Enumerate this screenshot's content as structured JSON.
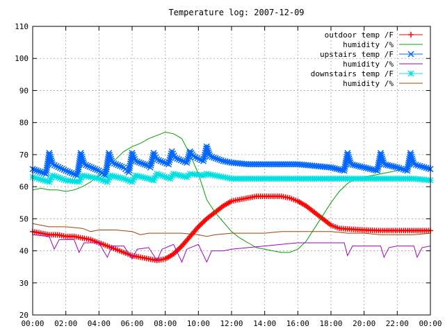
{
  "chart_data": {
    "type": "line",
    "title": "Temperature log: 2007-12-09",
    "xlabel": "",
    "ylabel": "",
    "ylim": [
      20,
      110
    ],
    "xlim": [
      0,
      24
    ],
    "yticks": [
      "20",
      "30",
      "40",
      "50",
      "60",
      "70",
      "80",
      "90",
      "100",
      "110"
    ],
    "xticks": [
      "00:00",
      "02:00",
      "04:00",
      "06:00",
      "08:00",
      "10:00",
      "12:00",
      "14:00",
      "16:00",
      "18:00",
      "20:00",
      "22:00",
      "00:00"
    ],
    "grid": true,
    "legend_position": "top-right",
    "series": [
      {
        "name": "outdoor temp /F",
        "color": "#ff0000",
        "marker": "plus",
        "x": [
          0,
          0.5,
          1,
          1.5,
          2,
          2.5,
          3,
          3.5,
          4,
          4.5,
          5,
          5.5,
          6,
          6.5,
          7,
          7.5,
          8,
          8.5,
          9,
          9.5,
          10,
          10.5,
          11,
          11.5,
          12,
          12.5,
          13,
          13.5,
          14,
          14.5,
          15,
          15.5,
          16,
          16.5,
          17,
          17.5,
          18,
          18.5,
          19,
          20,
          21,
          22,
          23,
          24
        ],
        "y": [
          46,
          45.5,
          45,
          45,
          44.5,
          44.5,
          44,
          43.5,
          42.5,
          41.5,
          40.5,
          39.5,
          38.5,
          38,
          37.5,
          37,
          37.5,
          39,
          41.5,
          44.5,
          47.5,
          50,
          52,
          54,
          55.5,
          56,
          56.5,
          57,
          57,
          57,
          57,
          56.5,
          55.5,
          54,
          52,
          50,
          48,
          47,
          46.8,
          46.5,
          46.3,
          46.3,
          46.3,
          46.3
        ]
      },
      {
        "name": "humidity /%",
        "color": "#00a000",
        "marker": "none",
        "x": [
          0,
          0.5,
          1,
          1.5,
          2,
          2.5,
          3,
          3.5,
          4,
          4.5,
          5,
          5.5,
          6,
          6.5,
          7,
          7.5,
          8,
          8.5,
          9,
          9.5,
          10,
          10.5,
          11,
          11.5,
          12,
          12.5,
          13,
          13.5,
          14,
          14.5,
          15,
          15.5,
          16,
          16.5,
          17,
          17.5,
          18,
          18.5,
          19,
          19.5,
          20,
          20.5,
          21,
          21.5,
          22,
          22.5,
          23,
          23.5,
          24
        ],
        "y": [
          59,
          59.5,
          59,
          59,
          58.5,
          59,
          60,
          61.5,
          63.5,
          66,
          68.5,
          71,
          72.5,
          73.5,
          75,
          76,
          77,
          76.5,
          75,
          70,
          64,
          56,
          52,
          49,
          46,
          44,
          42.5,
          41,
          40.5,
          40,
          39.5,
          39.5,
          40.5,
          43,
          47,
          51,
          55,
          58.5,
          61,
          62.5,
          63,
          63.5,
          64,
          64.5,
          65,
          66,
          67,
          66.5,
          66
        ]
      },
      {
        "name": "upstairs temp /F",
        "color": "#0066ff",
        "marker": "x",
        "x": [
          0,
          0.8,
          1.0,
          1.2,
          2,
          2.7,
          2.9,
          3.1,
          4,
          4.4,
          4.6,
          4.8,
          5.5,
          5.8,
          6.0,
          6.2,
          7,
          7.1,
          7.3,
          7.5,
          8.2,
          8.4,
          8.6,
          9.3,
          9.5,
          9.7,
          10.3,
          10.5,
          10.7,
          11.5,
          12,
          13,
          14,
          15,
          16,
          17,
          18,
          18.8,
          19.0,
          19.2,
          20,
          20.8,
          21.0,
          21.2,
          22,
          22.6,
          22.8,
          23.0,
          24
        ],
        "y": [
          65.5,
          64,
          70.5,
          67,
          65,
          63.5,
          70.5,
          67,
          65,
          63.5,
          70.5,
          67.5,
          66,
          64.5,
          70.5,
          68,
          66.5,
          66,
          70.5,
          68.5,
          67,
          71,
          69,
          67.5,
          71,
          69.5,
          68,
          72.5,
          69.5,
          68,
          67.5,
          67,
          67,
          67,
          67,
          66.5,
          66,
          65,
          70.5,
          67,
          66,
          65,
          70.5,
          67,
          66,
          65,
          70.5,
          67,
          65.5
        ]
      },
      {
        "name": "humidity /%",
        "color": "#a000c0",
        "marker": "none",
        "x": [
          0,
          1,
          1.3,
          1.6,
          2.5,
          2.8,
          3.1,
          4,
          4.5,
          4.8,
          5.5,
          6,
          6.3,
          7,
          7.5,
          7.8,
          8.5,
          9,
          9.3,
          10,
          10.5,
          10.8,
          11.5,
          12,
          13,
          14,
          15,
          16,
          17,
          18,
          18.8,
          19.0,
          19.3,
          20,
          21,
          21.2,
          21.5,
          22,
          23,
          23.2,
          23.5,
          24
        ],
        "y": [
          45,
          44.5,
          40.5,
          43.5,
          43.5,
          39.5,
          42.5,
          42.5,
          38,
          41.5,
          41.5,
          37.5,
          40.5,
          41,
          37,
          40.5,
          42,
          36.5,
          40.5,
          42,
          36.5,
          40,
          40,
          40.5,
          41,
          41.5,
          42,
          42.5,
          42.5,
          42.5,
          42.5,
          38.5,
          41.5,
          41.5,
          41.5,
          38,
          41,
          41.5,
          41.5,
          38,
          41,
          41.5
        ]
      },
      {
        "name": "downstairs temp /F",
        "color": "#00e0e0",
        "marker": "star",
        "x": [
          0,
          1,
          1.2,
          2,
          2.8,
          3.0,
          4,
          4.5,
          4.7,
          5.5,
          6.0,
          6.2,
          7,
          7.3,
          7.5,
          8.3,
          8.5,
          9.3,
          9.5,
          10.3,
          10.5,
          11.5,
          12,
          13,
          14,
          15,
          16,
          17,
          18,
          19,
          20,
          21,
          22,
          23,
          24
        ],
        "y": [
          63,
          61.5,
          63.5,
          62,
          61.5,
          63.5,
          62.5,
          61.5,
          63.5,
          62.5,
          61.5,
          63.5,
          62.5,
          62,
          64,
          62.5,
          64,
          63,
          64,
          63.5,
          64,
          63,
          62.5,
          62.5,
          62.5,
          62.5,
          62.5,
          62.5,
          62.5,
          62.5,
          62.5,
          62.5,
          62.5,
          62.5,
          62
        ]
      },
      {
        "name": "humidity /%",
        "color": "#a04000",
        "marker": "none",
        "x": [
          0,
          0.5,
          1,
          2,
          3,
          3.5,
          4,
          5,
          6,
          6.5,
          7,
          8,
          9,
          10,
          10.5,
          11,
          12,
          13,
          14,
          15,
          16,
          17,
          18,
          19,
          20,
          21,
          22,
          23,
          24
        ],
        "y": [
          48.5,
          48,
          47.5,
          47.5,
          47,
          46,
          46.5,
          46.5,
          46,
          45,
          45.5,
          45.5,
          45.5,
          45,
          44.5,
          45,
          45.5,
          45.5,
          45.5,
          46,
          46,
          46,
          46,
          45.5,
          45.5,
          45,
          45,
          45,
          45.5
        ]
      }
    ]
  }
}
